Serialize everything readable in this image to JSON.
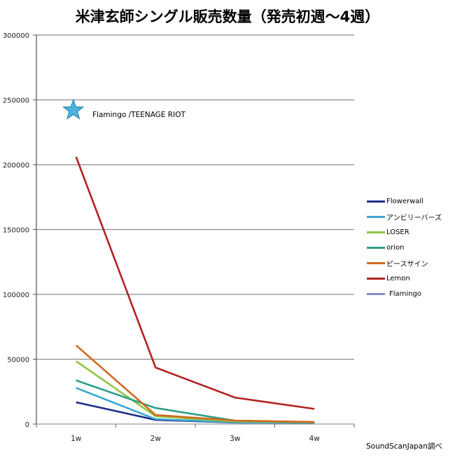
{
  "chart_data": {
    "type": "line",
    "title": "米津玄師シングル販売数量（発売初週〜4週）",
    "xlabel": "",
    "ylabel": "",
    "categories": [
      "1w",
      "2w",
      "3w",
      "4w"
    ],
    "ylim": [
      0,
      300000
    ],
    "yticks": [
      0,
      50000,
      100000,
      150000,
      200000,
      250000,
      300000
    ],
    "grid": true,
    "legend_position": "right",
    "series": [
      {
        "name": "Flowerwall",
        "color": "#1f2f8a",
        "values": [
          16800,
          3200,
          1200,
          900
        ]
      },
      {
        "name": "アンビリーバーズ",
        "color": "#3fa8d0",
        "values": [
          27900,
          3800,
          1400,
          1000
        ]
      },
      {
        "name": "LOSER",
        "color": "#8fc63f",
        "values": [
          48500,
          6000,
          2000,
          1300
        ]
      },
      {
        "name": "orion",
        "color": "#2e9e88",
        "values": [
          33700,
          12400,
          2600,
          1400
        ]
      },
      {
        "name": "ピースサイン",
        "color": "#d2691e",
        "values": [
          60700,
          7000,
          2700,
          1600
        ]
      },
      {
        "name": "Lemon",
        "color": "#b22222",
        "values": [
          206000,
          43600,
          20400,
          11700
        ]
      },
      {
        "name": "Flamingo",
        "color": "#8a8fc8",
        "values": [
          242000,
          null,
          null,
          null
        ],
        "marker": "star"
      }
    ],
    "annotations": [
      {
        "text": "Flamingo /TEENAGE RIOT",
        "x": "1w",
        "y": 242000
      }
    ],
    "source": "SoundScanJapan調べ"
  },
  "page": {
    "title": "米津玄師シングル販売数量（発売初週〜4週）",
    "annotation": "Flamingo /TEENAGE RIOT",
    "source": "SoundScanJapan調べ",
    "star_color": "#4ab3de"
  }
}
